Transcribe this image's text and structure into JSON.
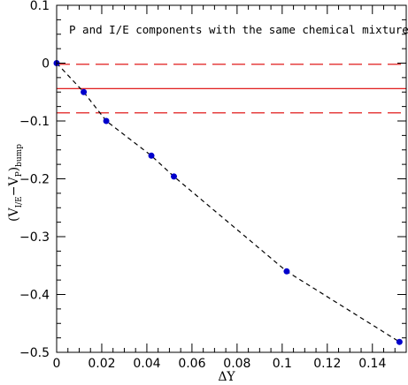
{
  "chart_data": {
    "type": "scatter",
    "annotation": "P and I/E components with the same chemical mixture",
    "xlabel": "ΔY",
    "ylabel": {
      "open": "(V",
      "sub1": "I/E",
      "mid": "−V",
      "sub2": "P",
      "close": ")",
      "sub3": "bump"
    },
    "xlim": [
      0,
      0.155
    ],
    "ylim": [
      -0.5,
      0.1
    ],
    "x_ticks": [
      0,
      0.02,
      0.04,
      0.06,
      0.08,
      0.1,
      0.12,
      0.14
    ],
    "x_tick_labels": [
      "0",
      "0.02",
      "0.04",
      "0.06",
      "0.08",
      "0.1",
      "0.12",
      "0.14"
    ],
    "y_ticks": [
      0.1,
      0,
      -0.1,
      -0.2,
      -0.3,
      -0.4,
      -0.5
    ],
    "y_tick_labels": [
      "0.1",
      "0",
      "−0.1",
      "−0.2",
      "−0.3",
      "−0.4",
      "−0.5"
    ],
    "series": [
      {
        "marker": "circle",
        "line": "dashed",
        "color": "#0000cc",
        "line_color": "#000000",
        "x": [
          0,
          0.012,
          0.022,
          0.042,
          0.052,
          0.102,
          0.152
        ],
        "y": [
          0,
          -0.05,
          -0.1,
          -0.16,
          -0.196,
          -0.36,
          -0.482
        ]
      }
    ],
    "reference_lines": [
      {
        "y": -0.002,
        "style": "dashed",
        "color": "#dd0000"
      },
      {
        "y": -0.044,
        "style": "solid",
        "color": "#dd0000"
      },
      {
        "y": -0.086,
        "style": "dashed",
        "color": "#dd0000"
      }
    ],
    "grid": false
  }
}
